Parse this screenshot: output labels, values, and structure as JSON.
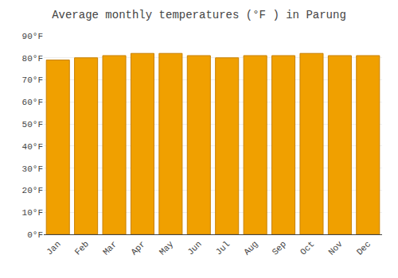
{
  "chart_data": {
    "type": "bar",
    "title": "Average monthly temperatures (°F ) in Parung",
    "categories": [
      "Jan",
      "Feb",
      "Mar",
      "Apr",
      "May",
      "Jun",
      "Jul",
      "Aug",
      "Sep",
      "Oct",
      "Nov",
      "Dec"
    ],
    "values": [
      79,
      80,
      81,
      82,
      82,
      81,
      80,
      81,
      81,
      82,
      81,
      81
    ],
    "color": "#F0A000",
    "ylim": [
      0,
      90
    ],
    "yticks": [
      {
        "value": 0,
        "label": "0°F"
      },
      {
        "value": 10,
        "label": "10°F"
      },
      {
        "value": 20,
        "label": "20°F"
      },
      {
        "value": 30,
        "label": "30°F"
      },
      {
        "value": 40,
        "label": "40°F"
      },
      {
        "value": 50,
        "label": "50°F"
      },
      {
        "value": 60,
        "label": "60°F"
      },
      {
        "value": 70,
        "label": "70°F"
      },
      {
        "value": 80,
        "label": "80°F"
      },
      {
        "value": 90,
        "label": "90°F"
      }
    ],
    "grid": true
  }
}
